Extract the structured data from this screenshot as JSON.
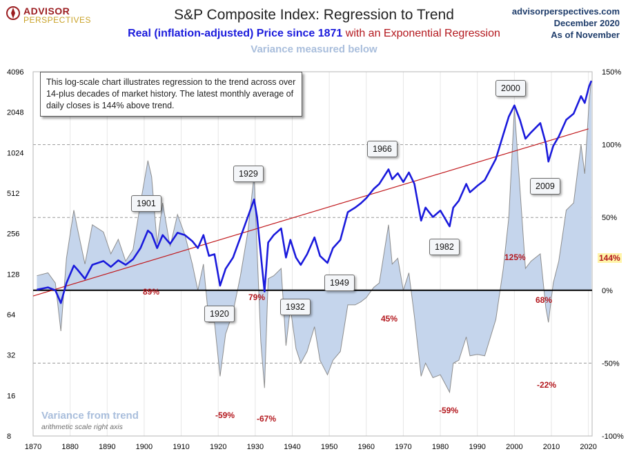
{
  "header": {
    "logo_line1": "ADVISOR",
    "logo_line2": "PERSPECTIVES",
    "site": "advisorperspectives.com",
    "date": "December 2020",
    "as_of": "As of November",
    "title": "S&P Composite Index: Regression to Trend",
    "subtitle_blue": "Real (inflation-adjusted) Price since 1871",
    "subtitle_red": "with an Exponential Regression",
    "variance_note": "Variance measured below"
  },
  "note": "This log-scale chart illustrates regression to the trend across over 14-plus decades of market history. The latest monthly average of daily closes is 144% above trend.",
  "variance_title": "Variance from trend",
  "variance_subtitle": "arithmetic scale right axis",
  "colors": {
    "price": "#1a1adc",
    "trend": "#c0181c",
    "variance_fill": "#c5d5ec",
    "variance_stroke": "#8d8d8d",
    "pct_label": "#b3171d"
  },
  "chart_data": {
    "type": "line",
    "left_axis": {
      "scale": "log2",
      "ticks": [
        "4096",
        "2048",
        "1024",
        "512",
        "256",
        "128",
        "64",
        "32",
        "16",
        "8"
      ],
      "ylim": [
        8,
        4096
      ]
    },
    "right_axis": {
      "scale": "linear",
      "ticks": [
        "150%",
        "100%",
        "50%",
        "0%",
        "-50%",
        "-100%"
      ],
      "ylim": [
        -100,
        150
      ]
    },
    "x_axis": {
      "ticks": [
        "1870",
        "1880",
        "1890",
        "1900",
        "1910",
        "1920",
        "1930",
        "1940",
        "1950",
        "1960",
        "1970",
        "1980",
        "1990",
        "2000",
        "2010",
        "2020"
      ],
      "xlim": [
        1870,
        2021
      ]
    },
    "trend": {
      "x": [
        1870,
        2020
      ],
      "y": [
        88,
        1540
      ]
    },
    "series": [
      {
        "name": "Real (inflation-adjusted) Price since 1871",
        "x": [
          1871,
          1874,
          1876,
          1877.5,
          1879,
          1881,
          1882,
          1884,
          1886,
          1889,
          1891,
          1893,
          1895,
          1897,
          1899,
          1901,
          1902,
          1903.5,
          1905,
          1907,
          1909,
          1911,
          1913,
          1914.5,
          1916,
          1917.5,
          1919,
          1920.5,
          1922,
          1924,
          1926,
          1928,
          1929.7,
          1930.5,
          1931.5,
          1932.5,
          1933.5,
          1935,
          1937,
          1938.3,
          1939.5,
          1941,
          1942.3,
          1944,
          1946,
          1947.5,
          1949.5,
          1951,
          1953,
          1955,
          1957,
          1958.5,
          1960,
          1962,
          1963.5,
          1966,
          1967,
          1968.5,
          1970,
          1971.5,
          1973,
          1974.8,
          1976,
          1978,
          1980,
          1982.5,
          1983.5,
          1985,
          1987,
          1988,
          1990,
          1992,
          1995,
          1997,
          1998.5,
          2000,
          2001.5,
          2003,
          2004.5,
          2007,
          2008.5,
          2009.2,
          2010.5,
          2012,
          2014,
          2016,
          2018,
          2019,
          2020.2,
          2020.8
        ],
        "y": [
          98,
          102,
          97,
          78,
          110,
          148,
          138,
          118,
          150,
          160,
          145,
          162,
          150,
          165,
          200,
          270,
          255,
          200,
          250,
          215,
          260,
          250,
          225,
          200,
          250,
          175,
          180,
          105,
          140,
          170,
          240,
          340,
          460,
          340,
          180,
          95,
          220,
          250,
          280,
          170,
          230,
          170,
          150,
          180,
          240,
          175,
          155,
          200,
          230,
          370,
          400,
          430,
          470,
          550,
          600,
          770,
          650,
          720,
          620,
          730,
          600,
          320,
          400,
          340,
          380,
          290,
          400,
          450,
          600,
          520,
          580,
          640,
          920,
          1400,
          1900,
          2300,
          1800,
          1300,
          1450,
          1700,
          1200,
          880,
          1150,
          1350,
          1800,
          2000,
          2700,
          2400,
          3200,
          3500
        ]
      },
      {
        "name": "Variance from trend",
        "axis": "right",
        "x": [
          1871,
          1874,
          1876,
          1877.5,
          1879,
          1881,
          1882,
          1884,
          1886,
          1889,
          1891,
          1893,
          1895,
          1897,
          1899,
          1901,
          1902,
          1903.5,
          1905,
          1907,
          1909,
          1911,
          1913,
          1914.5,
          1916,
          1917.5,
          1919,
          1920.5,
          1922,
          1924,
          1926,
          1928,
          1929.7,
          1930.5,
          1931.5,
          1932.5,
          1933.5,
          1935,
          1937,
          1938.3,
          1939.5,
          1941,
          1942.3,
          1944,
          1946,
          1947.5,
          1949.5,
          1951,
          1953,
          1955,
          1957,
          1958.5,
          1960,
          1962,
          1963.5,
          1966,
          1967,
          1968.5,
          1970,
          1971.5,
          1973,
          1974.8,
          1976,
          1978,
          1980,
          1982.5,
          1983.5,
          1985,
          1987,
          1988,
          1990,
          1992,
          1995,
          1997,
          1998.5,
          2000,
          2001.5,
          2003,
          2004.5,
          2007,
          2008.5,
          2009.2,
          2010.5,
          2012,
          2014,
          2016,
          2018,
          2019,
          2020.2,
          2020.8
        ],
        "y": [
          10,
          12,
          5,
          -28,
          22,
          55,
          42,
          18,
          45,
          40,
          25,
          35,
          20,
          28,
          60,
          89,
          78,
          32,
          60,
          30,
          52,
          38,
          18,
          0,
          18,
          -22,
          -22,
          -59,
          -30,
          -15,
          10,
          40,
          79,
          28,
          -35,
          -67,
          8,
          10,
          15,
          -38,
          -12,
          -40,
          -50,
          -42,
          -25,
          -48,
          -58,
          -48,
          -42,
          -10,
          -10,
          -8,
          -5,
          2,
          5,
          45,
          18,
          22,
          0,
          12,
          -18,
          -59,
          -50,
          -60,
          -58,
          -70,
          -50,
          -48,
          -32,
          -45,
          -44,
          -45,
          -20,
          15,
          50,
          125,
          70,
          15,
          20,
          25,
          -12,
          -22,
          5,
          20,
          55,
          60,
          100,
          80,
          130,
          144
        ]
      }
    ],
    "callouts": [
      "1901",
      "1929",
      "1966",
      "2000",
      "2009",
      "1920",
      "1932",
      "1949",
      "1982"
    ],
    "annotations": [
      "89%",
      "79%",
      "45%",
      "125%",
      "68%",
      "144%",
      "-59%",
      "-67%",
      "-59%",
      "-22%"
    ]
  }
}
